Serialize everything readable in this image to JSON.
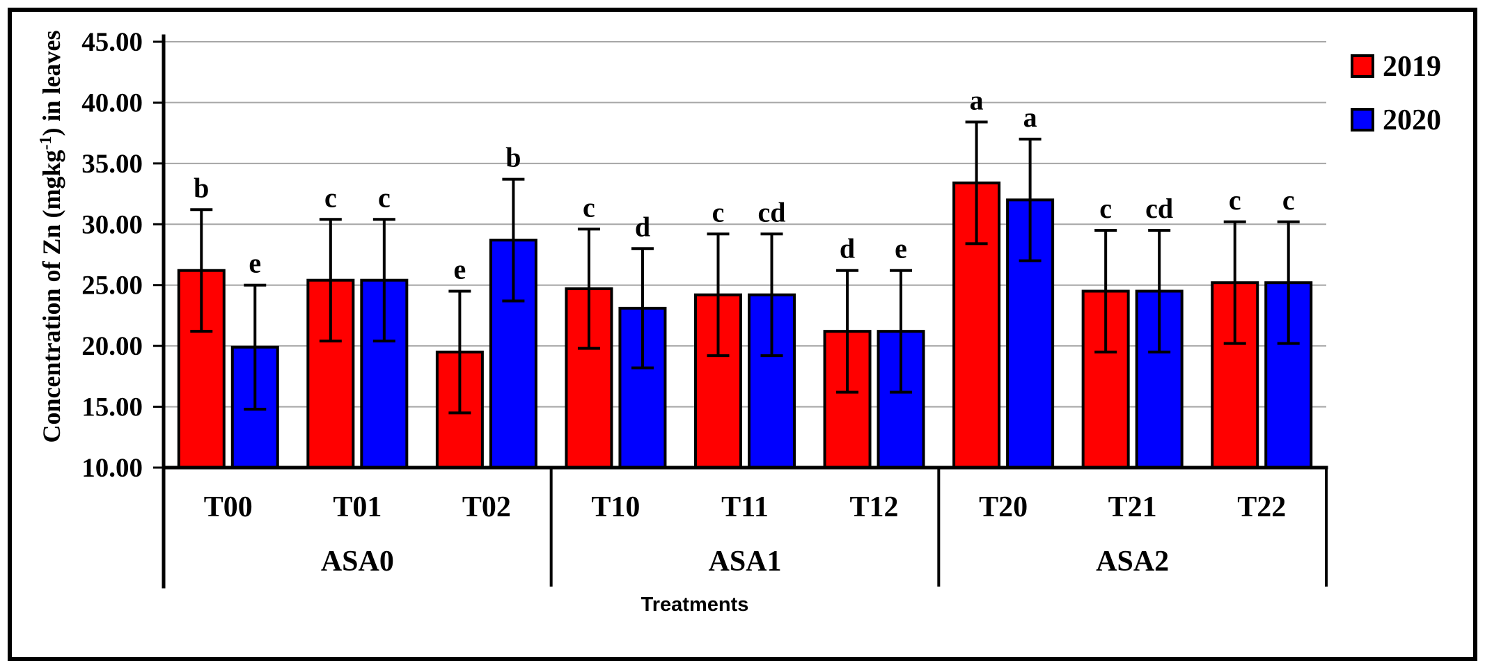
{
  "chart_data": {
    "type": "bar",
    "title": "",
    "ylabel": "Concentration of Zn (mgkg⁻¹) in leaves",
    "ylabel_parts": {
      "pre": "Concentration of Zn (mgkg",
      "sup": "-1",
      "post": ") in leaves"
    },
    "xlabel": "Treatments",
    "ylim": [
      10,
      45
    ],
    "yticks": {
      "values": [
        45,
        40,
        35,
        30,
        25,
        20,
        15,
        10
      ],
      "labels": [
        "45.00",
        "40.00",
        "35.00",
        "30.00",
        "25.00",
        "20.00",
        "15.00",
        "10.00"
      ]
    },
    "grid": true,
    "gridline_color": "#A6A6A6",
    "axis_color": "#000000",
    "categories": [
      "T00",
      "T01",
      "T02",
      "T10",
      "T11",
      "T12",
      "T20",
      "T21",
      "T22"
    ],
    "groups": [
      {
        "label": "ASA0",
        "count": 3
      },
      {
        "label": "ASA1",
        "count": 3
      },
      {
        "label": "ASA2",
        "count": 3
      }
    ],
    "legend": {
      "position": "top-right",
      "entries": [
        {
          "label": "2019",
          "color": "#FF0000"
        },
        {
          "label": "2020",
          "color": "#0000FF"
        }
      ]
    },
    "series": [
      {
        "name": "2019",
        "color": "#FF0000",
        "values": [
          26.2,
          25.4,
          19.5,
          24.7,
          24.2,
          21.2,
          33.4,
          24.5,
          25.2
        ],
        "errors": [
          5.0,
          5.0,
          5.0,
          4.9,
          5.0,
          5.0,
          5.0,
          5.0,
          5.0
        ],
        "letters": [
          "b",
          "c",
          "e",
          "c",
          "c",
          "d",
          "a",
          "c",
          "c"
        ]
      },
      {
        "name": "2020",
        "color": "#0000FF",
        "values": [
          19.9,
          25.4,
          28.7,
          23.1,
          24.2,
          21.2,
          32.0,
          24.5,
          25.2
        ],
        "errors": [
          5.1,
          5.0,
          5.0,
          4.9,
          5.0,
          5.0,
          5.0,
          5.0,
          5.0
        ],
        "letters": [
          "e",
          "c",
          "b",
          "d",
          "cd",
          "e",
          "a",
          "cd",
          "c"
        ]
      }
    ]
  }
}
